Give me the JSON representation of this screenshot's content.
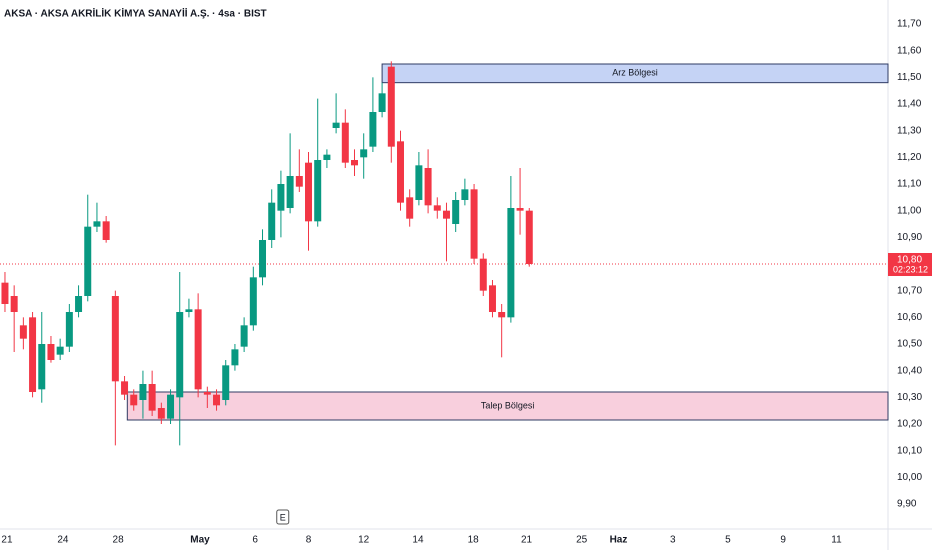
{
  "chart_data": {
    "type": "candlestick",
    "title": "AKSA · AKSA AKRİLİK KİMYA SANAYİİ A.Ş. · 4sa · BIST",
    "up_color": "#089981",
    "down_color": "#f23645",
    "open": [
      10.73,
      10.68,
      10.57,
      10.6,
      10.33,
      10.5,
      10.46,
      10.49,
      10.62,
      10.68,
      10.94,
      10.96,
      10.68,
      10.36,
      10.31,
      10.29,
      10.35,
      10.26,
      10.22,
      10.3,
      10.62,
      10.63,
      10.32,
      10.31,
      10.29,
      10.42,
      10.49,
      10.57,
      10.75,
      10.89,
      11.0,
      11.01,
      11.13,
      11.18,
      10.96,
      11.19,
      11.31,
      11.33,
      11.19,
      11.2,
      11.24,
      11.37,
      11.54,
      11.26,
      11.05,
      11.04,
      11.16,
      11.02,
      11.0,
      10.95,
      11.04,
      11.08,
      10.82,
      10.72,
      10.62,
      10.6,
      11.01,
      11.0
    ],
    "high": [
      10.77,
      10.72,
      10.6,
      10.62,
      10.62,
      10.53,
      10.52,
      10.65,
      10.72,
      11.06,
      11.03,
      10.98,
      10.7,
      10.38,
      10.33,
      10.4,
      10.4,
      10.28,
      10.33,
      10.77,
      10.67,
      10.69,
      10.34,
      10.33,
      10.44,
      10.5,
      10.6,
      10.79,
      10.93,
      11.08,
      11.15,
      11.29,
      11.23,
      11.22,
      11.42,
      11.23,
      11.44,
      11.38,
      11.23,
      11.29,
      11.5,
      11.48,
      11.56,
      11.3,
      11.08,
      11.22,
      11.23,
      11.05,
      11.03,
      11.07,
      11.12,
      11.1,
      10.84,
      10.74,
      10.65,
      11.13,
      11.16,
      11.01
    ],
    "low": [
      10.62,
      10.47,
      10.48,
      10.3,
      10.28,
      10.43,
      10.44,
      10.47,
      10.6,
      10.66,
      10.92,
      10.88,
      10.12,
      10.29,
      10.25,
      10.22,
      10.23,
      10.2,
      10.2,
      10.12,
      10.6,
      10.3,
      10.26,
      10.25,
      10.27,
      10.4,
      10.47,
      10.55,
      10.72,
      10.86,
      10.9,
      10.99,
      11.07,
      10.85,
      10.94,
      11.16,
      11.29,
      11.16,
      11.13,
      11.12,
      11.22,
      11.35,
      11.18,
      11.0,
      10.94,
      11.02,
      10.99,
      10.97,
      10.81,
      10.92,
      11.02,
      10.8,
      10.68,
      10.6,
      10.45,
      10.58,
      10.91,
      10.79
    ],
    "close": [
      10.65,
      10.62,
      10.52,
      10.32,
      10.5,
      10.44,
      10.49,
      10.62,
      10.68,
      10.94,
      10.96,
      10.89,
      10.36,
      10.31,
      10.27,
      10.35,
      10.25,
      10.22,
      10.31,
      10.62,
      10.63,
      10.33,
      10.31,
      10.27,
      10.42,
      10.48,
      10.57,
      10.75,
      10.89,
      11.03,
      11.1,
      11.13,
      11.09,
      10.96,
      11.19,
      11.21,
      11.33,
      11.18,
      11.17,
      11.23,
      11.37,
      11.44,
      11.24,
      11.03,
      10.97,
      11.17,
      11.02,
      11.0,
      10.97,
      11.04,
      11.08,
      10.82,
      10.7,
      10.62,
      10.6,
      11.01,
      11.0,
      10.8
    ],
    "xlim": [
      -0.54,
      96
    ],
    "ylim": [
      9.84,
      11.79
    ],
    "xticks": [
      {
        "value": 0.22,
        "label": "21"
      },
      {
        "value": 6.3,
        "label": "24"
      },
      {
        "value": 12.3,
        "label": "28"
      },
      {
        "value": 21.2,
        "label": "May"
      },
      {
        "value": 27.2,
        "label": "6"
      },
      {
        "value": 33.0,
        "label": "8"
      },
      {
        "value": 39.0,
        "label": "12"
      },
      {
        "value": 44.9,
        "label": "14"
      },
      {
        "value": 50.9,
        "label": "18"
      },
      {
        "value": 56.7,
        "label": "21"
      },
      {
        "value": 62.7,
        "label": "25"
      },
      {
        "value": 66.7,
        "label": "Haz"
      },
      {
        "value": 72.6,
        "label": "3"
      },
      {
        "value": 78.6,
        "label": "5"
      },
      {
        "value": 84.6,
        "label": "9"
      },
      {
        "value": 90.4,
        "label": "11"
      }
    ],
    "yticks": [
      {
        "value": 9.9,
        "label": "9,90"
      },
      {
        "value": 10.0,
        "label": "10,00"
      },
      {
        "value": 10.1,
        "label": "10,10"
      },
      {
        "value": 10.2,
        "label": "10,20"
      },
      {
        "value": 10.3,
        "label": "10,30"
      },
      {
        "value": 10.4,
        "label": "10,40"
      },
      {
        "value": 10.5,
        "label": "10,50"
      },
      {
        "value": 10.6,
        "label": "10,60"
      },
      {
        "value": 10.7,
        "label": "10,70"
      },
      {
        "value": 10.9,
        "label": "10,90"
      },
      {
        "value": 11.0,
        "label": "11,00"
      },
      {
        "value": 11.1,
        "label": "11,10"
      },
      {
        "value": 11.2,
        "label": "11,20"
      },
      {
        "value": 11.3,
        "label": "11,30"
      },
      {
        "value": 11.4,
        "label": "11,40"
      },
      {
        "value": 11.5,
        "label": "11,50"
      },
      {
        "value": 11.6,
        "label": "11,60"
      },
      {
        "value": 11.7,
        "label": "11,70"
      }
    ],
    "zones": [
      {
        "label": "Arz Bölgesi",
        "start": 41.0,
        "low": 11.48,
        "high": 11.55,
        "color": "#c5d3f5",
        "border": "#2f3b63"
      },
      {
        "label": "Talep Bölgesi",
        "start": 13.3,
        "low": 10.215,
        "high": 10.32,
        "color": "#f8cfdd",
        "border": "#2f3b63"
      }
    ],
    "last_price": {
      "value": 10.8,
      "label": "10,80",
      "countdown": "02:23:12",
      "color": "#f23645"
    },
    "events": [
      {
        "x": 30.2,
        "label": "E"
      }
    ]
  }
}
